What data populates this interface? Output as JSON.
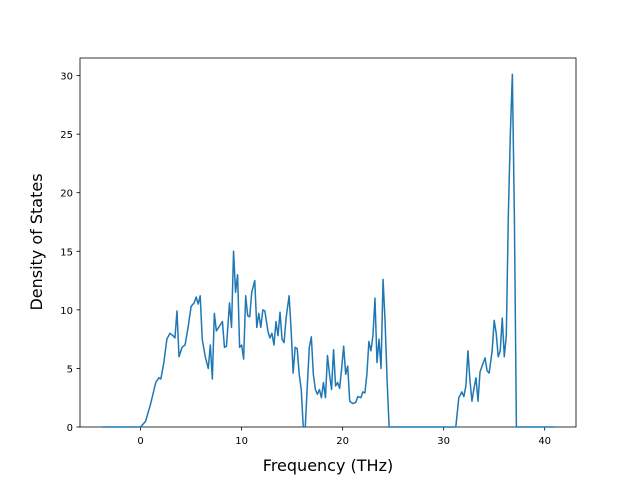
{
  "chart_data": {
    "type": "line",
    "x_label": "Frequency (THz)",
    "y_label": "Density of States",
    "xlim": [
      -6.0,
      43.1
    ],
    "ylim": [
      0,
      31.5
    ],
    "xticks": [
      0,
      10,
      20,
      30,
      40
    ],
    "yticks": [
      0,
      5,
      10,
      15,
      20,
      25,
      30
    ],
    "color": "#1f77b4",
    "x": [
      -3.8,
      0,
      0.5,
      1,
      1.5,
      1.8,
      2,
      2.3,
      2.6,
      2.9,
      3.2,
      3.4,
      3.6,
      3.8,
      4.1,
      4.4,
      4.7,
      5,
      5.3,
      5.5,
      5.7,
      5.9,
      6.1,
      6.4,
      6.7,
      6.9,
      7.1,
      7.3,
      7.5,
      7.8,
      8.1,
      8.3,
      8.5,
      8.8,
      9,
      9.2,
      9.4,
      9.6,
      9.8,
      10,
      10.2,
      10.4,
      10.6,
      10.8,
      11,
      11.3,
      11.5,
      11.7,
      11.9,
      12.1,
      12.3,
      12.6,
      12.8,
      13,
      13.2,
      13.4,
      13.6,
      13.8,
      14,
      14.2,
      14.4,
      14.7,
      14.9,
      15.1,
      15.3,
      15.5,
      15.7,
      15.9,
      16.1,
      16.3,
      16.5,
      16.7,
      16.9,
      17.1,
      17.3,
      17.5,
      17.7,
      17.9,
      18.1,
      18.3,
      18.5,
      18.7,
      18.9,
      19.1,
      19.3,
      19.5,
      19.7,
      19.9,
      20.1,
      20.3,
      20.5,
      20.7,
      21,
      21.3,
      21.5,
      21.8,
      22,
      22.2,
      22.4,
      22.6,
      22.8,
      23,
      23.2,
      23.4,
      23.6,
      23.8,
      24,
      24.2,
      24.4,
      24.6,
      31.2,
      31.5,
      31.8,
      32,
      32.2,
      32.4,
      32.6,
      32.8,
      33,
      33.2,
      33.4,
      33.6,
      33.8,
      34.1,
      34.3,
      34.5,
      34.8,
      35,
      35.2,
      35.4,
      35.6,
      35.8,
      36,
      36.2,
      36.4,
      36.6,
      36.8,
      37,
      37.2,
      41
    ],
    "values": [
      0,
      0,
      0.5,
      2,
      3.8,
      4.2,
      4.1,
      5.5,
      7.5,
      8,
      7.8,
      7.6,
      9.9,
      6,
      6.8,
      7,
      8.5,
      10.3,
      10.6,
      11.1,
      10.5,
      11.2,
      7.5,
      6,
      5,
      7,
      4.1,
      9.7,
      8.2,
      8.6,
      9,
      6.8,
      6.9,
      10.6,
      8.5,
      15,
      11.5,
      13,
      6.8,
      7,
      5.8,
      11.2,
      9.5,
      9.4,
      11.5,
      12.5,
      8.5,
      9.7,
      8.5,
      10,
      9.9,
      8.2,
      7.6,
      8,
      7,
      9,
      7.8,
      9.8,
      7.5,
      7.2,
      9.3,
      11.2,
      8.3,
      4.6,
      6.8,
      6.7,
      4.5,
      3.2,
      0,
      0,
      3.5,
      6.8,
      7.7,
      4.5,
      3.2,
      2.8,
      3.2,
      2.5,
      3.8,
      2.5,
      6.1,
      4.5,
      3.2,
      6.6,
      3.5,
      3.8,
      3.3,
      5,
      6.9,
      4.5,
      5.2,
      2.2,
      2,
      2.1,
      2.6,
      2.5,
      3,
      2.9,
      4.5,
      7.3,
      6.5,
      7.8,
      11,
      5.5,
      7.5,
      5,
      12.6,
      9,
      4,
      0,
      0,
      2.5,
      3,
      2.6,
      3.5,
      6.5,
      4,
      2.2,
      3.3,
      4.2,
      2.2,
      4.7,
      5.2,
      5.9,
      4.8,
      4.6,
      6.5,
      9.1,
      8,
      6,
      6.5,
      9.3,
      6,
      7.8,
      18,
      25,
      30.1,
      18,
      0,
      0
    ]
  }
}
